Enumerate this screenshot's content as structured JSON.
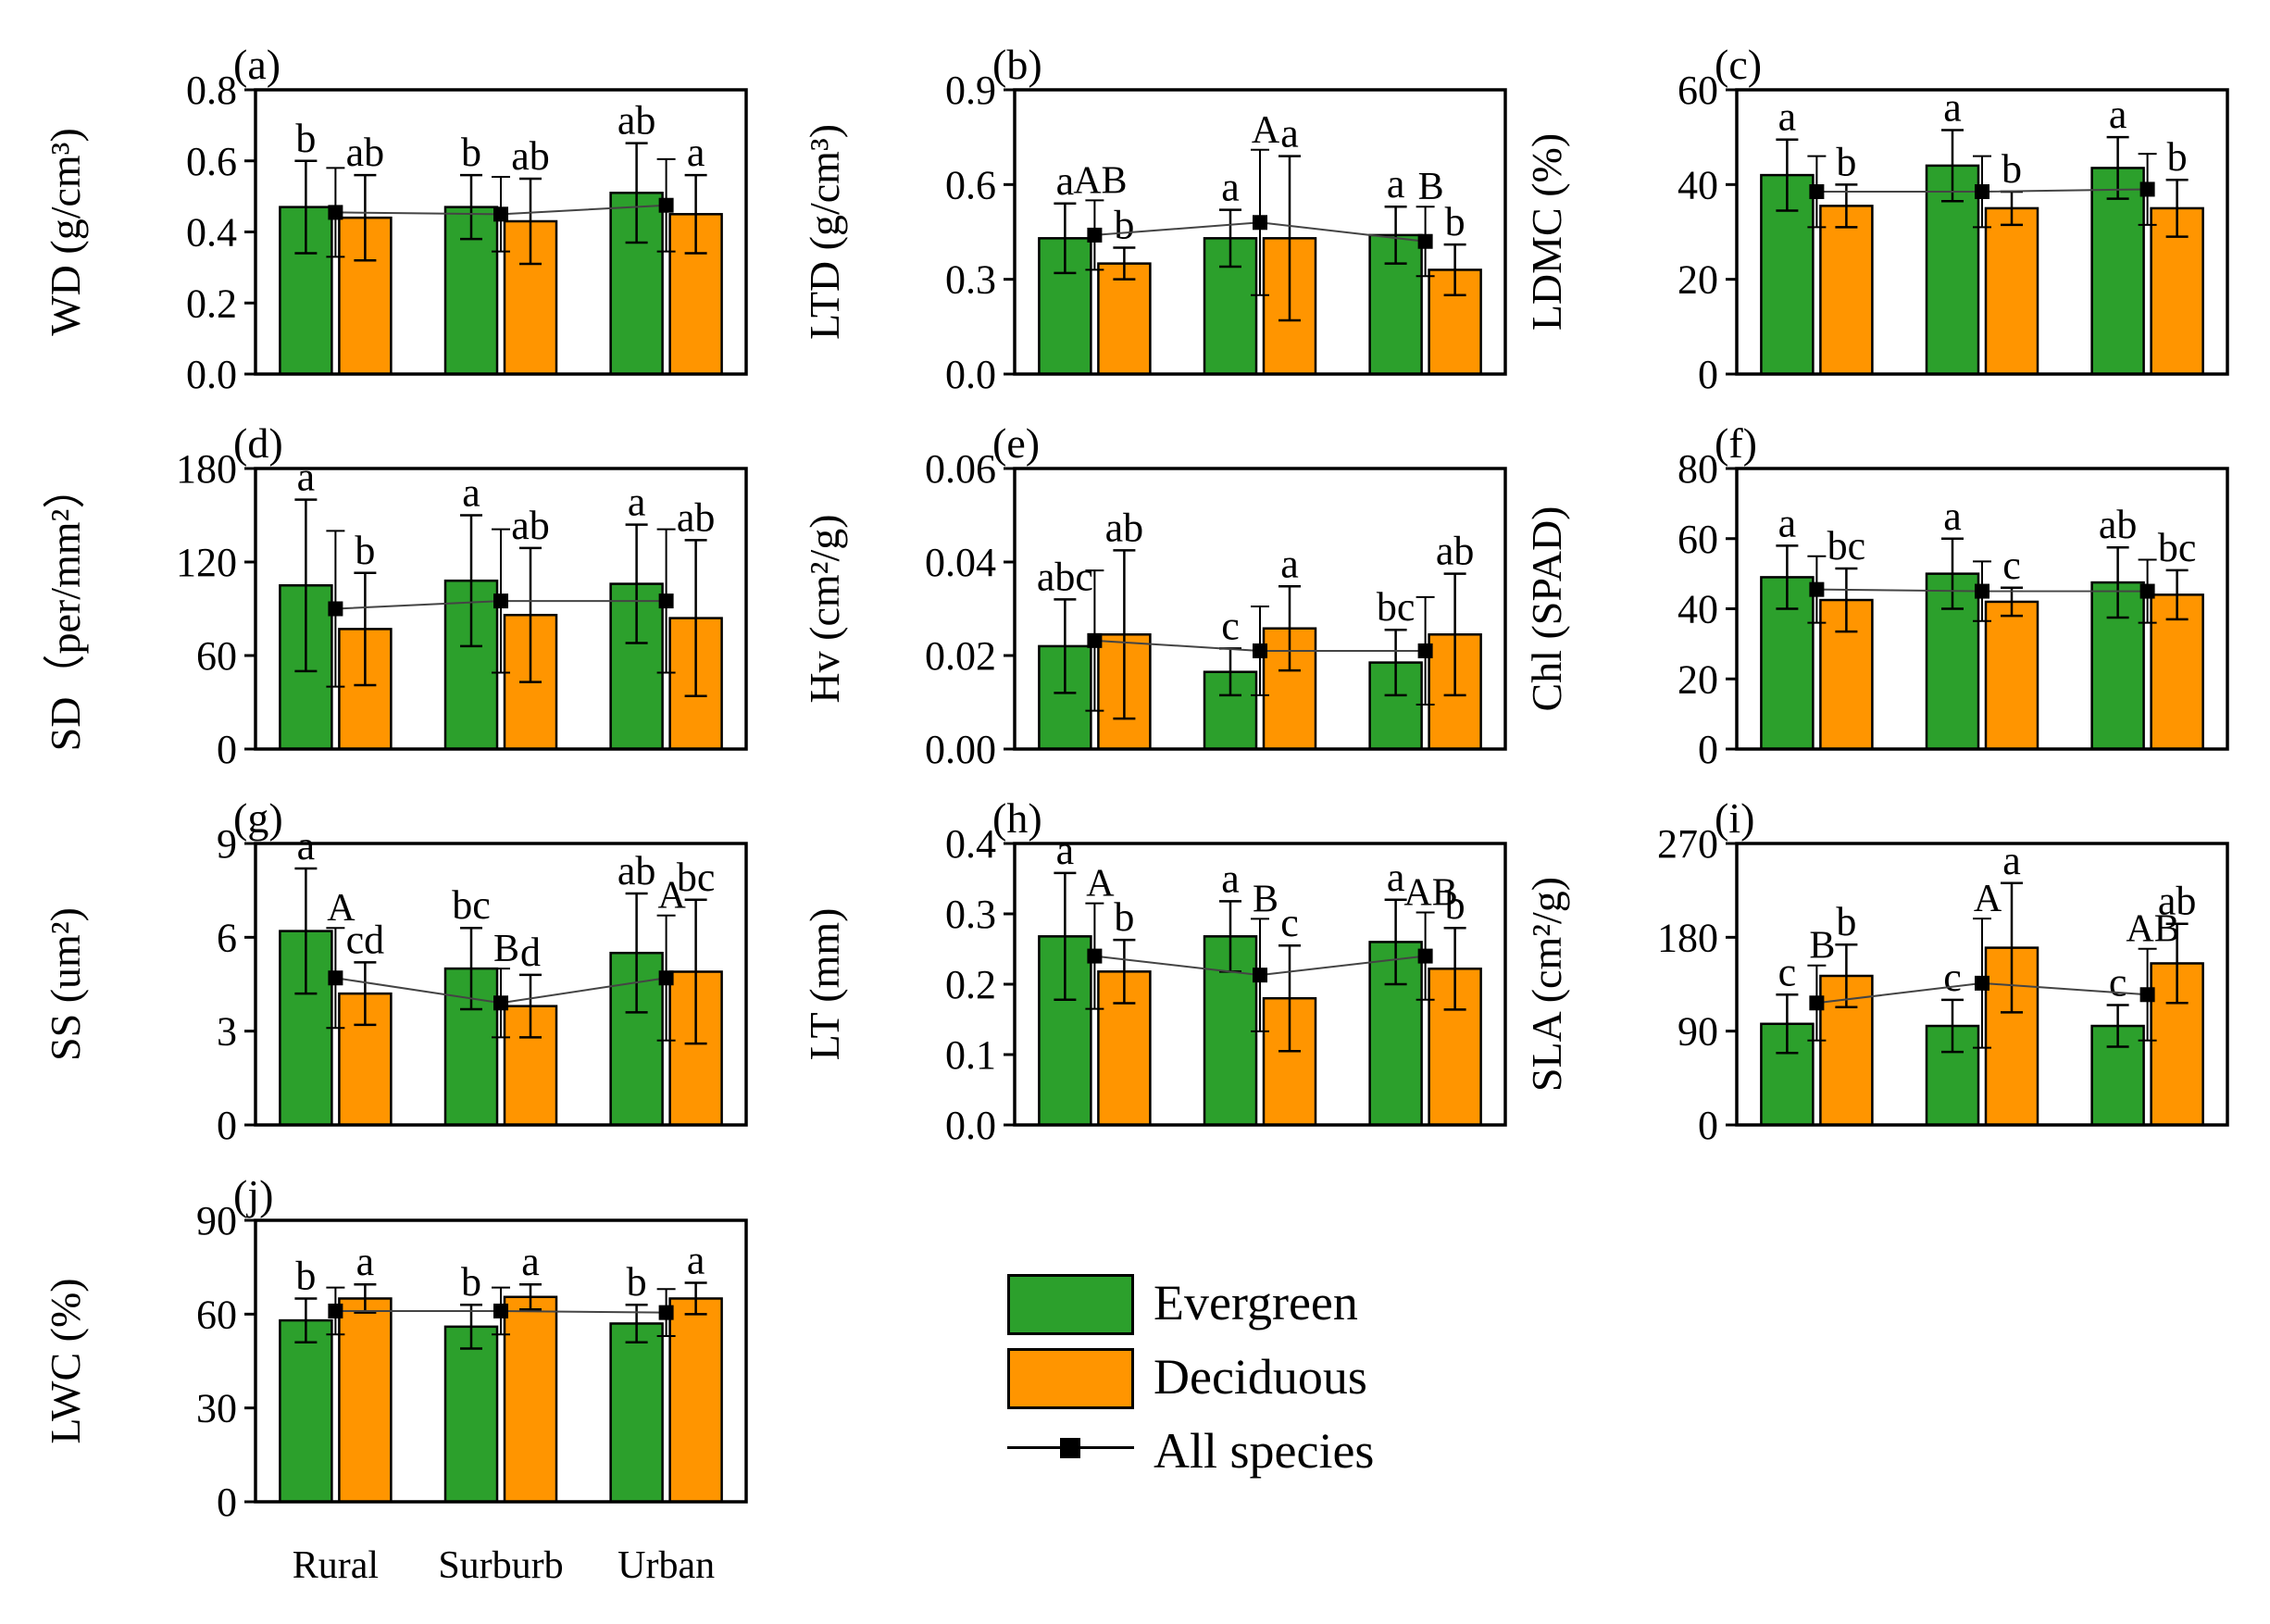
{
  "colors": {
    "evergreen": "#2ca02c",
    "deciduous": "#ff9500",
    "all_species": "#000000"
  },
  "legend": {
    "evergreen": "Evergreen",
    "deciduous": "Deciduous",
    "all_species": "All species"
  },
  "chart_data": [
    {
      "panel": "(a)",
      "type": "bar",
      "ylabel": "WD (g/cm³)",
      "ylim": [
        0,
        0.8
      ],
      "yticks": [
        "0.0",
        "0.2",
        "0.4",
        "0.6",
        "0.8"
      ],
      "categories": [
        "Rural",
        "Surburb",
        "Urban"
      ],
      "series": [
        {
          "name": "Evergreen",
          "values": [
            0.47,
            0.47,
            0.51
          ],
          "err": [
            0.13,
            0.09,
            0.14
          ],
          "letters": [
            "b",
            "b",
            "ab"
          ]
        },
        {
          "name": "Deciduous",
          "values": [
            0.44,
            0.43,
            0.45
          ],
          "err": [
            0.12,
            0.12,
            0.11
          ],
          "letters": [
            "ab",
            "ab",
            "a"
          ]
        },
        {
          "name": "All species",
          "values": [
            0.455,
            0.45,
            0.475
          ],
          "err": [
            0.125,
            0.105,
            0.13
          ],
          "letters": [
            "",
            "",
            ""
          ]
        }
      ]
    },
    {
      "panel": "(b)",
      "type": "bar",
      "ylabel": "LTD (g/cm³)",
      "ylim": [
        0,
        0.9
      ],
      "yticks": [
        "0.0",
        "0.3",
        "0.6",
        "0.9"
      ],
      "categories": [
        "Rural",
        "Surburb",
        "Urban"
      ],
      "series": [
        {
          "name": "Evergreen",
          "values": [
            0.43,
            0.43,
            0.44
          ],
          "err": [
            0.11,
            0.09,
            0.09
          ],
          "letters": [
            "a",
            "a",
            "a"
          ]
        },
        {
          "name": "Deciduous",
          "values": [
            0.35,
            0.43,
            0.33
          ],
          "err": [
            0.05,
            0.26,
            0.08
          ],
          "letters": [
            "b",
            "a",
            "b"
          ]
        },
        {
          "name": "All species",
          "values": [
            0.44,
            0.48,
            0.42
          ],
          "err": [
            0.11,
            0.23,
            0.11
          ],
          "letters": [
            "AB",
            "A",
            "B"
          ]
        }
      ]
    },
    {
      "panel": "(c)",
      "type": "bar",
      "ylabel": "LDMC (%)",
      "ylim": [
        0,
        60
      ],
      "yticks": [
        "0",
        "20",
        "40",
        "60"
      ],
      "categories": [
        "Rural",
        "Surburb",
        "Urban"
      ],
      "series": [
        {
          "name": "Evergreen",
          "values": [
            42,
            44,
            43.5
          ],
          "err": [
            7.5,
            7.5,
            6.5
          ],
          "letters": [
            "a",
            "a",
            "a"
          ]
        },
        {
          "name": "Deciduous",
          "values": [
            35.5,
            35,
            35
          ],
          "err": [
            4.5,
            3.5,
            6
          ],
          "letters": [
            "b",
            "b",
            "b"
          ]
        },
        {
          "name": "All species",
          "values": [
            38.5,
            38.5,
            39
          ],
          "err": [
            7.5,
            7.5,
            7.5
          ],
          "letters": [
            "",
            "",
            ""
          ]
        }
      ]
    },
    {
      "panel": "(d)",
      "type": "bar",
      "ylabel": "SD（per/mm²）",
      "ylim": [
        0,
        180
      ],
      "yticks": [
        "0",
        "60",
        "120",
        "180"
      ],
      "categories": [
        "Rural",
        "Surburb",
        "Urban"
      ],
      "series": [
        {
          "name": "Evergreen",
          "values": [
            105,
            108,
            106
          ],
          "err": [
            55,
            42,
            38
          ],
          "letters": [
            "a",
            "a",
            "a"
          ]
        },
        {
          "name": "Deciduous",
          "values": [
            77,
            86,
            84
          ],
          "err": [
            36,
            43,
            50
          ],
          "letters": [
            "b",
            "ab",
            "ab"
          ]
        },
        {
          "name": "All species",
          "values": [
            90,
            95,
            95
          ],
          "err": [
            50,
            46,
            46
          ],
          "letters": [
            "",
            "",
            ""
          ]
        }
      ]
    },
    {
      "panel": "(e)",
      "type": "bar",
      "ylabel": "Hv (cm²/g)",
      "ylim": [
        0,
        0.06
      ],
      "yticks": [
        "0.00",
        "0.02",
        "0.04",
        "0.06"
      ],
      "categories": [
        "Rural",
        "Surburb",
        "Urban"
      ],
      "series": [
        {
          "name": "Evergreen",
          "values": [
            0.022,
            0.0165,
            0.0185
          ],
          "err": [
            0.01,
            0.005,
            0.007
          ],
          "letters": [
            "abc",
            "c",
            "bc"
          ]
        },
        {
          "name": "Deciduous",
          "values": [
            0.0245,
            0.0258,
            0.0245
          ],
          "err": [
            0.018,
            0.009,
            0.013
          ],
          "letters": [
            "ab",
            "a",
            "ab"
          ]
        },
        {
          "name": "All species",
          "values": [
            0.0232,
            0.021,
            0.021
          ],
          "err": [
            0.015,
            0.0095,
            0.0115
          ],
          "letters": [
            "",
            "",
            ""
          ]
        }
      ]
    },
    {
      "panel": "(f)",
      "type": "bar",
      "ylabel": "Chl (SPAD)",
      "ylim": [
        0,
        80
      ],
      "yticks": [
        "0",
        "20",
        "40",
        "60",
        "80"
      ],
      "categories": [
        "Rural",
        "Surburb",
        "Urban"
      ],
      "series": [
        {
          "name": "Evergreen",
          "values": [
            49,
            50,
            47.5
          ],
          "err": [
            9,
            10,
            10
          ],
          "letters": [
            "a",
            "a",
            "ab"
          ]
        },
        {
          "name": "Deciduous",
          "values": [
            42.5,
            42,
            44
          ],
          "err": [
            9,
            4,
            7
          ],
          "letters": [
            "bc",
            "c",
            "bc"
          ]
        },
        {
          "name": "All species",
          "values": [
            45.5,
            45,
            45
          ],
          "err": [
            9.5,
            8.5,
            9
          ],
          "letters": [
            "",
            "",
            ""
          ]
        }
      ]
    },
    {
      "panel": "(g)",
      "type": "bar",
      "ylabel": "SS (um²)",
      "ylim": [
        0,
        9
      ],
      "yticks": [
        "0",
        "3",
        "6",
        "9"
      ],
      "categories": [
        "Rural",
        "Surburb",
        "Urban"
      ],
      "series": [
        {
          "name": "Evergreen",
          "values": [
            6.2,
            5.0,
            5.5
          ],
          "err": [
            2,
            1.3,
            1.9
          ],
          "letters": [
            "a",
            "bc",
            "ab"
          ]
        },
        {
          "name": "Deciduous",
          "values": [
            4.2,
            3.8,
            4.9
          ],
          "err": [
            1,
            1.0,
            2.3
          ],
          "letters": [
            "cd",
            "d",
            "bc"
          ]
        },
        {
          "name": "All species",
          "values": [
            4.7,
            3.9,
            4.7
          ],
          "err": [
            1.6,
            1.1,
            2
          ],
          "letters": [
            "A",
            "B",
            "A"
          ]
        }
      ]
    },
    {
      "panel": "(h)",
      "type": "bar",
      "ylabel": "LT (mm)",
      "ylim": [
        0,
        0.4
      ],
      "yticks": [
        "0.0",
        "0.1",
        "0.2",
        "0.3",
        "0.4"
      ],
      "categories": [
        "Rural",
        "Surburb",
        "Urban"
      ],
      "series": [
        {
          "name": "Evergreen",
          "values": [
            0.268,
            0.268,
            0.26
          ],
          "err": [
            0.09,
            0.05,
            0.06
          ],
          "letters": [
            "a",
            "a",
            "a"
          ]
        },
        {
          "name": "Deciduous",
          "values": [
            0.218,
            0.18,
            0.222
          ],
          "err": [
            0.045,
            0.075,
            0.058
          ],
          "letters": [
            "b",
            "c",
            "b"
          ]
        },
        {
          "name": "All species",
          "values": [
            0.24,
            0.213,
            0.24
          ],
          "err": [
            0.075,
            0.08,
            0.062
          ],
          "letters": [
            "A",
            "B",
            "AB"
          ]
        }
      ]
    },
    {
      "panel": "(i)",
      "type": "bar",
      "ylabel": "SLA (cm²/g)",
      "ylim": [
        0,
        270
      ],
      "yticks": [
        "0",
        "90",
        "180",
        "270"
      ],
      "categories": [
        "Rural",
        "Surburb",
        "Urban"
      ],
      "series": [
        {
          "name": "Evergreen",
          "values": [
            97,
            95,
            95
          ],
          "err": [
            28,
            25,
            20
          ],
          "letters": [
            "c",
            "c",
            "c"
          ]
        },
        {
          "name": "Deciduous",
          "values": [
            143,
            170,
            155
          ],
          "err": [
            30,
            62,
            38
          ],
          "letters": [
            "b",
            "a",
            "ab"
          ]
        },
        {
          "name": "All species",
          "values": [
            117,
            136,
            125
          ],
          "err": [
            36,
            62,
            44
          ],
          "letters": [
            "B",
            "A",
            "AB"
          ]
        }
      ]
    },
    {
      "panel": "(j)",
      "type": "bar",
      "ylabel": "LWC (%)",
      "ylim": [
        0,
        90
      ],
      "yticks": [
        "0",
        "30",
        "60",
        "90"
      ],
      "categories": [
        "Rural",
        "Surburb",
        "Urban"
      ],
      "show_xlabels": true,
      "series": [
        {
          "name": "Evergreen",
          "values": [
            58,
            56,
            57
          ],
          "err": [
            7,
            7,
            6
          ],
          "letters": [
            "b",
            "b",
            "b"
          ]
        },
        {
          "name": "Deciduous",
          "values": [
            65,
            65.5,
            65
          ],
          "err": [
            4.5,
            4,
            5
          ],
          "letters": [
            "a",
            "a",
            "a"
          ]
        },
        {
          "name": "All species",
          "values": [
            61,
            61,
            60.5
          ],
          "err": [
            7.5,
            7.5,
            7.5
          ],
          "letters": [
            "",
            "",
            ""
          ]
        }
      ]
    }
  ]
}
